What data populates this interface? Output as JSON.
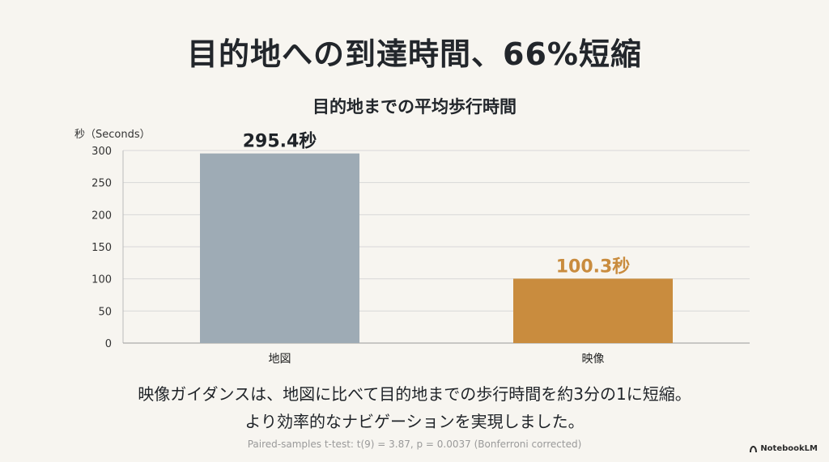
{
  "title": "目的地への到達時間、66%短縮",
  "caption_lines": [
    "映像ガイダンスは、地図に比べて目的地までの歩行時間を約3分の1に短縮。",
    "より効率的なナビゲーションを実現しました。"
  ],
  "stats_note": "Paired-samples t-test: t(9) = 3.87, p = 0.0037 (Bonferroni corrected)",
  "brand": "NotebookLM",
  "chart_data": {
    "type": "bar",
    "title": "目的地までの平均歩行時間",
    "ylabel": "秒（Seconds）",
    "categories": [
      "地図",
      "映像"
    ],
    "values": [
      295.4,
      100.3
    ],
    "data_labels": [
      "295.4秒",
      "100.3秒"
    ],
    "ylim": [
      0,
      300
    ],
    "yticks": [
      0,
      50,
      100,
      150,
      200,
      250,
      300
    ],
    "grid": true,
    "colors": [
      "#9eabb5",
      "#c98c3e"
    ],
    "label_colors": [
      "#1f2328",
      "#c98c3e"
    ]
  }
}
